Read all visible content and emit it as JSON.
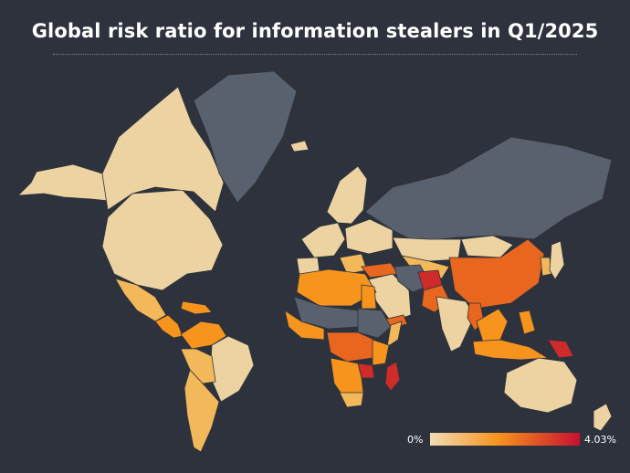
{
  "title": "Global risk ratio for information stealers in Q1/2025",
  "legend": {
    "min_label": "0%",
    "max_label": "4.03%",
    "color_low": "#f0dcb4",
    "color_mid": "#f7941d",
    "color_high": "#c8102e"
  },
  "colors": {
    "background": "#2d323c",
    "no_data": "#59616e",
    "low": "#ecd3a1",
    "low_mid": "#f2b85a",
    "mid": "#f7941d",
    "high": "#e9661e",
    "very_high": "#cf2b2b"
  },
  "regions": [
    {
      "name": "North America",
      "level": "low"
    },
    {
      "name": "Alaska",
      "level": "low"
    },
    {
      "name": "Canadian Arctic",
      "level": "low"
    },
    {
      "name": "Greenland",
      "level": "no_data"
    },
    {
      "name": "Mexico",
      "level": "low_mid"
    },
    {
      "name": "Central America",
      "level": "mid"
    },
    {
      "name": "Caribbean",
      "level": "mid"
    },
    {
      "name": "Colombia-Venezuela",
      "level": "mid"
    },
    {
      "name": "Brazil",
      "level": "low"
    },
    {
      "name": "Peru-Bolivia",
      "level": "low_mid"
    },
    {
      "name": "Argentina-Chile",
      "level": "low_mid"
    },
    {
      "name": "Iceland",
      "level": "low"
    },
    {
      "name": "Scandinavia",
      "level": "low"
    },
    {
      "name": "Western Europe",
      "level": "low"
    },
    {
      "name": "Eastern Europe",
      "level": "low"
    },
    {
      "name": "Iberia",
      "level": "low"
    },
    {
      "name": "Balkans",
      "level": "low_mid"
    },
    {
      "name": "Turkey",
      "level": "high"
    },
    {
      "name": "Russia",
      "level": "no_data"
    },
    {
      "name": "Kazakhstan",
      "level": "low"
    },
    {
      "name": "Central Asia",
      "level": "low_mid"
    },
    {
      "name": "Mongolia",
      "level": "low"
    },
    {
      "name": "China",
      "level": "high"
    },
    {
      "name": "Korea",
      "level": "low_mid"
    },
    {
      "name": "Japan",
      "level": "low"
    },
    {
      "name": "Middle East",
      "level": "low"
    },
    {
      "name": "Iran",
      "level": "no_data"
    },
    {
      "name": "Afghanistan",
      "level": "very_high"
    },
    {
      "name": "Pakistan",
      "level": "high"
    },
    {
      "name": "Yemen",
      "level": "high"
    },
    {
      "name": "India",
      "level": "low"
    },
    {
      "name": "Myanmar",
      "level": "high"
    },
    {
      "name": "Thailand-Indochina",
      "level": "mid"
    },
    {
      "name": "Malaysia-Indonesia",
      "level": "mid"
    },
    {
      "name": "Philippines",
      "level": "mid"
    },
    {
      "name": "Papua New Guinea",
      "level": "very_high"
    },
    {
      "name": "Australia",
      "level": "low"
    },
    {
      "name": "New Zealand",
      "level": "low"
    },
    {
      "name": "North Africa",
      "level": "mid"
    },
    {
      "name": "Sahel",
      "level": "no_data"
    },
    {
      "name": "West Africa",
      "level": "mid"
    },
    {
      "name": "Egypt",
      "level": "mid"
    },
    {
      "name": "Sudan-Ethiopia",
      "level": "no_data"
    },
    {
      "name": "Somalia",
      "level": "low_mid"
    },
    {
      "name": "Central Africa",
      "level": "high"
    },
    {
      "name": "East Africa",
      "level": "mid"
    },
    {
      "name": "Zambia",
      "level": "very_high"
    },
    {
      "name": "Southern Africa",
      "level": "mid"
    },
    {
      "name": "South Africa",
      "level": "low_mid"
    },
    {
      "name": "Madagascar",
      "level": "very_high"
    }
  ]
}
